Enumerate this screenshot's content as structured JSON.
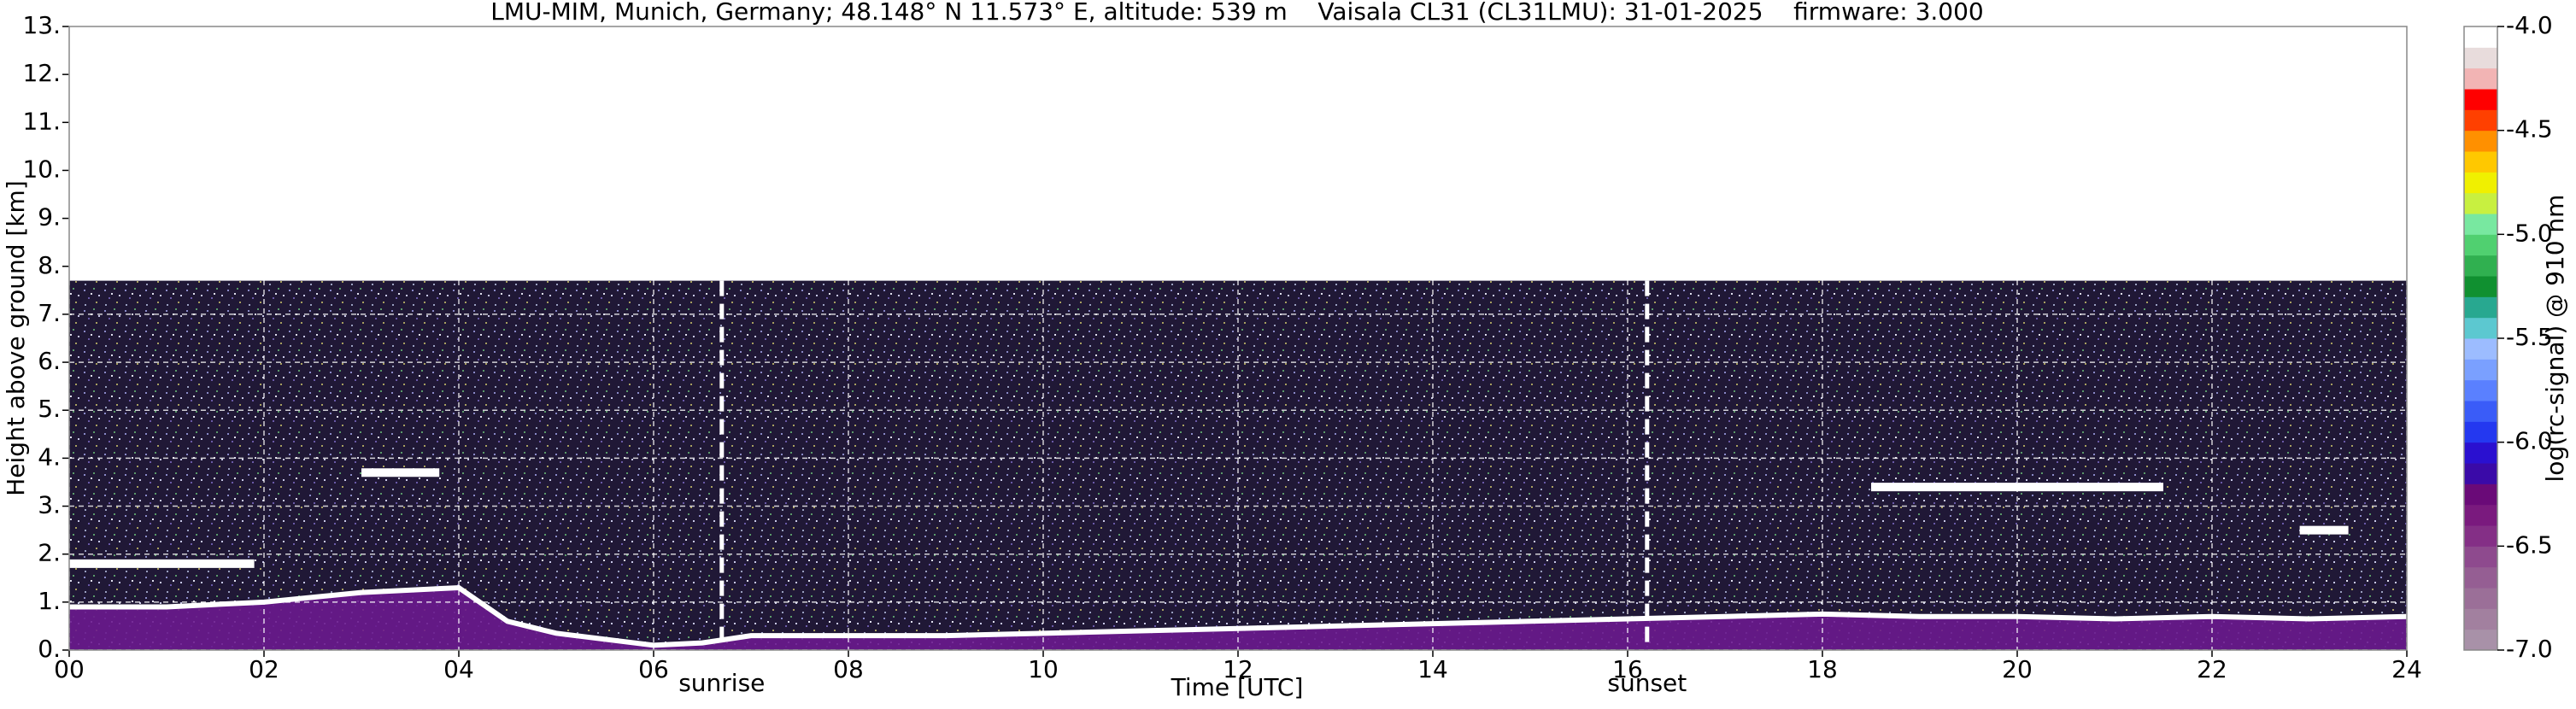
{
  "chart_data": {
    "type": "ceilometer",
    "title": "LMU-MIM, Munich, Germany; 48.148° N 11.573° E, altitude: 539 m    Vaisala CL31 (CL31LMU): 31-01-2025    firmware: 3.000",
    "x_label": "Time [UTC]",
    "y_label": "Height above ground [km]",
    "colorbar_label": "log(rc-signal) @ 910 nm",
    "xlim": [
      0,
      24
    ],
    "xticks": [
      {
        "value": 0,
        "label": "00"
      },
      {
        "value": 2,
        "label": "02"
      },
      {
        "value": 4,
        "label": "04"
      },
      {
        "value": 6,
        "label": "06"
      },
      {
        "value": 8,
        "label": "08"
      },
      10,
      12,
      14,
      16,
      18,
      20,
      22,
      24
    ],
    "ylim": [
      0,
      13
    ],
    "yticks": [
      {
        "value": 0,
        "label": "0."
      },
      {
        "value": 1,
        "label": "1."
      },
      {
        "value": 2,
        "label": "2."
      },
      {
        "value": 3,
        "label": "3."
      },
      {
        "value": 4,
        "label": "4."
      },
      {
        "value": 5,
        "label": "5."
      },
      {
        "value": 6,
        "label": "6."
      },
      {
        "value": 7,
        "label": "7."
      },
      {
        "value": 8,
        "label": "8."
      },
      {
        "value": 9,
        "label": "9."
      },
      {
        "value": 10,
        "label": "10."
      },
      {
        "value": 11,
        "label": "11."
      },
      {
        "value": 12,
        "label": "12."
      },
      {
        "value": 13,
        "label": "13."
      }
    ],
    "grid": true,
    "signal_top": 7.7,
    "clim": [
      -7,
      -4
    ],
    "cticks": [
      {
        "value": -7,
        "label": "-7.0"
      },
      {
        "value": -6.5,
        "label": "-6.5"
      },
      {
        "value": -6,
        "label": "-6.0"
      },
      {
        "value": -5.5,
        "label": "-5.5"
      },
      {
        "value": -5,
        "label": "-5.0"
      },
      {
        "value": -4.5,
        "label": "-4.5"
      },
      {
        "value": -4,
        "label": "-4.0"
      }
    ],
    "colors": [
      "#a891a8",
      "#a2809f",
      "#9b6f98",
      "#955e93",
      "#8e4a8e",
      "#842f86",
      "#7a1a7e",
      "#6a0a78",
      "#3a0aa8",
      "#2a10d0",
      "#2438f0",
      "#3a5cf8",
      "#5a80ff",
      "#7aa0ff",
      "#9cbcff",
      "#5cc8d0",
      "#28a890",
      "#109030",
      "#30b050",
      "#50d070",
      "#78e8a0",
      "#c8f040",
      "#f0f000",
      "#ffc800",
      "#ff9000",
      "#ff4000",
      "#ff0000",
      "#f2b4b4",
      "#e8dcdc",
      "#ffffff"
    ],
    "aerosol_top": {
      "x": [
        0,
        1,
        2,
        3,
        4,
        4.5,
        5,
        6,
        6.5,
        7,
        8,
        9,
        10,
        11,
        12,
        13,
        14,
        15,
        16,
        17,
        18,
        19,
        20,
        21,
        22,
        23,
        24
      ],
      "y": [
        0.9,
        0.9,
        1.0,
        1.2,
        1.3,
        0.6,
        0.35,
        0.1,
        0.15,
        0.3,
        0.3,
        0.3,
        0.35,
        0.4,
        0.45,
        0.5,
        0.55,
        0.6,
        0.65,
        0.7,
        0.75,
        0.7,
        0.7,
        0.65,
        0.7,
        0.65,
        0.7
      ]
    },
    "cloud_layers": [
      {
        "x": [
          0,
          1.9
        ],
        "y": [
          1.8,
          1.8
        ]
      },
      {
        "x": [
          3.0,
          3.8
        ],
        "y": [
          3.7,
          3.7
        ]
      },
      {
        "x": [
          18.5,
          21.5
        ],
        "y": [
          3.4,
          3.4
        ]
      },
      {
        "x": [
          22.9,
          23.4
        ],
        "y": [
          2.5,
          2.5
        ]
      }
    ],
    "annotations": [
      {
        "text": "sunrise",
        "x": 6.7
      },
      {
        "text": "sunset",
        "x": 16.2
      }
    ]
  }
}
